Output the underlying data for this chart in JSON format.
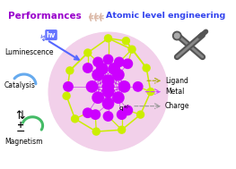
{
  "title_left": "Performances",
  "title_right": "Atomic level engineering",
  "title_left_color": "#9900cc",
  "title_right_color": "#3344ee",
  "bg_color": "#ffffff",
  "pink_circle_color": "#f2d0ea",
  "metal_color": "#cc00ff",
  "ligand_color": "#ccee00",
  "label_luminescence": "Luminescence",
  "label_catalysis": "Catalysis",
  "label_magnetism": "Magnetism",
  "label_ligand": "Ligand",
  "label_metal": "Metal",
  "label_charge": "Charge",
  "label_charge_symbol": "q",
  "arrow_color_ligand": "#aaaa00",
  "arrow_color_metal": "#cc44ff",
  "arrow_color_charge": "#999999",
  "tool_color": "#555555",
  "hv_arrow_color": "#5566ff",
  "catalysis_arc_color": "#66aaee",
  "magnetism_arc_color": "#44bb66"
}
